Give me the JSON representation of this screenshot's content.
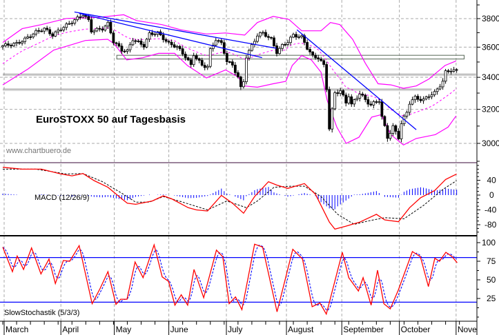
{
  "chart_data": {
    "type": "candlestick",
    "title": "EuroSTOXX 50 auf Tagesbasis",
    "watermark": "www.chartbuero.de",
    "colors": {
      "bands": "#ff00ff",
      "trend": "#0000ff",
      "macd": "#ff0000",
      "signal": "#000000",
      "hist": "#0000ff",
      "k": "#ff0000",
      "d": "#0000ff",
      "levels": "#0000ff",
      "zones": "#808080"
    },
    "x_axis": {
      "unit": "trading day",
      "months": [
        {
          "label": "March",
          "day": 0.5
        },
        {
          "label": "April",
          "day": 21
        },
        {
          "label": "May",
          "day": 40.3
        },
        {
          "label": "June",
          "day": 60
        },
        {
          "label": "July",
          "day": 80.8
        },
        {
          "label": "August",
          "day": 102.5
        },
        {
          "label": "September",
          "day": 122.5
        },
        {
          "label": "October",
          "day": 143.3
        },
        {
          "label": "Nove",
          "day": 163.8
        }
      ]
    },
    "price": {
      "yticks": [
        "3800",
        "3600",
        "3400",
        "3200",
        "3000"
      ],
      "ylim": [
        2900,
        3900
      ],
      "close": [
        [
          0,
          3610
        ],
        [
          5,
          3624
        ],
        [
          8,
          3654
        ],
        [
          12,
          3705
        ],
        [
          15,
          3728
        ],
        [
          18,
          3683
        ],
        [
          21,
          3728
        ],
        [
          24,
          3764
        ],
        [
          28,
          3816
        ],
        [
          29,
          3831
        ],
        [
          31,
          3786
        ],
        [
          32,
          3713
        ],
        [
          36,
          3728
        ],
        [
          38,
          3764
        ],
        [
          40,
          3639
        ],
        [
          43,
          3580
        ],
        [
          45,
          3573
        ],
        [
          47,
          3654
        ],
        [
          51,
          3610
        ],
        [
          53,
          3691
        ],
        [
          56,
          3698
        ],
        [
          60,
          3624
        ],
        [
          63,
          3602
        ],
        [
          66,
          3536
        ],
        [
          68,
          3477
        ],
        [
          69,
          3551
        ],
        [
          72,
          3477
        ],
        [
          74,
          3470
        ],
        [
          75,
          3580
        ],
        [
          77,
          3654
        ],
        [
          79,
          3624
        ],
        [
          81,
          3507
        ],
        [
          83,
          3477
        ],
        [
          85,
          3403
        ],
        [
          86,
          3330
        ],
        [
          87,
          3374
        ],
        [
          88,
          3536
        ],
        [
          90,
          3610
        ],
        [
          92,
          3683
        ],
        [
          94,
          3698
        ],
        [
          97,
          3654
        ],
        [
          99,
          3566
        ],
        [
          101,
          3610
        ],
        [
          103,
          3639
        ],
        [
          105,
          3683
        ],
        [
          108,
          3669
        ],
        [
          110,
          3595
        ],
        [
          112,
          3536
        ],
        [
          114,
          3529
        ],
        [
          116,
          3477
        ],
        [
          117,
          3330
        ],
        [
          118,
          3087
        ],
        [
          120,
          3300
        ],
        [
          122,
          3315
        ],
        [
          124,
          3241
        ],
        [
          125,
          3286
        ],
        [
          126,
          3227
        ],
        [
          129,
          3300
        ],
        [
          131,
          3256
        ],
        [
          133,
          3227
        ],
        [
          136,
          3256
        ],
        [
          137,
          3153
        ],
        [
          139,
          3035
        ],
        [
          141,
          3094
        ],
        [
          143,
          3035
        ],
        [
          144,
          3116
        ],
        [
          146,
          3182
        ],
        [
          147,
          3241
        ],
        [
          149,
          3271
        ],
        [
          152,
          3256
        ],
        [
          154,
          3286
        ],
        [
          156,
          3300
        ],
        [
          159,
          3374
        ],
        [
          160,
          3433
        ],
        [
          162,
          3448
        ],
        [
          164,
          3440
        ]
      ],
      "upper_band": [
        [
          0,
          3632
        ],
        [
          7,
          3728
        ],
        [
          14,
          3757
        ],
        [
          23,
          3801
        ],
        [
          34.5,
          3809
        ],
        [
          43.7,
          3828
        ],
        [
          48.3,
          3786
        ],
        [
          57.5,
          3757
        ],
        [
          64.4,
          3720
        ],
        [
          73.6,
          3691
        ],
        [
          80.5,
          3698
        ],
        [
          87.4,
          3683
        ],
        [
          92,
          3772
        ],
        [
          97.7,
          3816
        ],
        [
          103.4,
          3794
        ],
        [
          108,
          3713
        ],
        [
          115,
          3713
        ],
        [
          118.4,
          3772
        ],
        [
          121.8,
          3757
        ],
        [
          126.4,
          3654
        ],
        [
          131,
          3492
        ],
        [
          135.6,
          3359
        ],
        [
          140.2,
          3352
        ],
        [
          144.8,
          3330
        ],
        [
          149.4,
          3345
        ],
        [
          154,
          3389
        ],
        [
          159.8,
          3477
        ],
        [
          163.8,
          3507
        ]
      ],
      "lower_band": [
        [
          0,
          3352
        ],
        [
          9.2,
          3455
        ],
        [
          18.4,
          3580
        ],
        [
          29.9,
          3646
        ],
        [
          37.9,
          3654
        ],
        [
          40.2,
          3624
        ],
        [
          44.8,
          3514
        ],
        [
          50.6,
          3529
        ],
        [
          56.3,
          3558
        ],
        [
          62.1,
          3558
        ],
        [
          66.7,
          3477
        ],
        [
          73.6,
          3396
        ],
        [
          80.5,
          3448
        ],
        [
          85,
          3403
        ],
        [
          87.4,
          3345
        ],
        [
          92,
          3337
        ],
        [
          97.7,
          3359
        ],
        [
          102.3,
          3374
        ],
        [
          104.6,
          3477
        ],
        [
          108,
          3543
        ],
        [
          111.5,
          3514
        ],
        [
          115,
          3433
        ],
        [
          117.2,
          3256
        ],
        [
          120.7,
          3094
        ],
        [
          124.1,
          3000
        ],
        [
          128.7,
          3035
        ],
        [
          133.3,
          3153
        ],
        [
          136.8,
          3168
        ],
        [
          140.2,
          3050
        ],
        [
          144.8,
          2991
        ],
        [
          149.4,
          3028
        ],
        [
          156.3,
          3050
        ],
        [
          160.9,
          3094
        ],
        [
          163.8,
          3160
        ]
      ],
      "trendlines": [
        [
          [
            25.9,
            3848
          ],
          [
            98.9,
            3592
          ]
        ],
        [
          [
            27.6,
            3838
          ],
          [
            93.7,
            3529
          ]
        ],
        [
          [
            106.3,
            3720
          ],
          [
            149.4,
            3079
          ]
        ]
      ],
      "support_zone": {
        "from_day": 41.2,
        "to_day": 166.7,
        "low": 3520,
        "high": 3545
      },
      "horizontal_lines": [
        {
          "price": 3420,
          "from_day": 0,
          "to_day": 171
        },
        {
          "price": 3325,
          "from_day": 0,
          "to_day": 155
        }
      ]
    },
    "macd": {
      "label": "MACD (12/26/9)",
      "yticks": [
        "40",
        "0",
        "-40",
        "-80"
      ],
      "macd": [
        [
          0,
          75
        ],
        [
          7,
          70
        ],
        [
          14,
          70
        ],
        [
          21,
          57
        ],
        [
          25,
          52
        ],
        [
          29,
          58
        ],
        [
          33,
          39
        ],
        [
          38,
          21
        ],
        [
          43,
          -10
        ],
        [
          45,
          -22
        ],
        [
          48,
          -25
        ],
        [
          54,
          -16
        ],
        [
          58,
          -2
        ],
        [
          61,
          -10
        ],
        [
          67,
          -34
        ],
        [
          70,
          -40
        ],
        [
          74,
          -43
        ],
        [
          79,
          -1
        ],
        [
          83,
          -22
        ],
        [
          87,
          -49
        ],
        [
          91,
          -4
        ],
        [
          96,
          36
        ],
        [
          99,
          27
        ],
        [
          103,
          18
        ],
        [
          109,
          31
        ],
        [
          113,
          2
        ],
        [
          118,
          -73
        ],
        [
          120,
          -92
        ],
        [
          124,
          -84
        ],
        [
          129,
          -73
        ],
        [
          135,
          -52
        ],
        [
          138,
          -67
        ],
        [
          143,
          -72
        ],
        [
          147,
          -34
        ],
        [
          151,
          -7
        ],
        [
          156,
          12
        ],
        [
          160,
          42
        ],
        [
          164,
          57
        ]
      ],
      "signal": [
        [
          0,
          70
        ],
        [
          12,
          70
        ],
        [
          23,
          57
        ],
        [
          29,
          58
        ],
        [
          36,
          36
        ],
        [
          43,
          5
        ],
        [
          48,
          -19
        ],
        [
          53,
          -19
        ],
        [
          58,
          -4
        ],
        [
          65,
          -19
        ],
        [
          74,
          -40
        ],
        [
          81,
          -16
        ],
        [
          88,
          -34
        ],
        [
          92,
          -16
        ],
        [
          98,
          21
        ],
        [
          104,
          24
        ],
        [
          109,
          24
        ],
        [
          115,
          -4
        ],
        [
          121,
          -52
        ],
        [
          127,
          -79
        ],
        [
          132,
          -70
        ],
        [
          138,
          -61
        ],
        [
          145,
          -64
        ],
        [
          152,
          -28
        ],
        [
          159,
          15
        ],
        [
          164,
          39
        ]
      ]
    },
    "stochastic": {
      "label": "SlowStochastik (5/3/3)",
      "yticks": [
        "100",
        "75",
        "50",
        "25"
      ],
      "levels": [
        80,
        20
      ],
      "k": [
        [
          0,
          94
        ],
        [
          3.5,
          61
        ],
        [
          5.2,
          82
        ],
        [
          7.5,
          64
        ],
        [
          10.4,
          93
        ],
        [
          13.8,
          58
        ],
        [
          16.7,
          78
        ],
        [
          19,
          45
        ],
        [
          21.9,
          76
        ],
        [
          24.2,
          75
        ],
        [
          27.6,
          96
        ],
        [
          32.3,
          18
        ],
        [
          35.1,
          38
        ],
        [
          38,
          61
        ],
        [
          40.9,
          17
        ],
        [
          42.6,
          24
        ],
        [
          44.9,
          24
        ],
        [
          47.8,
          74
        ],
        [
          50.7,
          53
        ],
        [
          54.7,
          97
        ],
        [
          57.6,
          54
        ],
        [
          59.9,
          48
        ],
        [
          62.2,
          16
        ],
        [
          64.5,
          30
        ],
        [
          66.8,
          16
        ],
        [
          69.1,
          64
        ],
        [
          72.6,
          26
        ],
        [
          77.2,
          90
        ],
        [
          79.5,
          81
        ],
        [
          81.8,
          18
        ],
        [
          84.1,
          27
        ],
        [
          86.4,
          10
        ],
        [
          91,
          98
        ],
        [
          93.9,
          94
        ],
        [
          99.1,
          7
        ],
        [
          104.8,
          91
        ],
        [
          108.3,
          78
        ],
        [
          111.8,
          14
        ],
        [
          114.6,
          19
        ],
        [
          116.9,
          4
        ],
        [
          122.7,
          87
        ],
        [
          125,
          53
        ],
        [
          128.5,
          35
        ],
        [
          130.2,
          53
        ],
        [
          133.1,
          16
        ],
        [
          135.4,
          63
        ],
        [
          137.7,
          18
        ],
        [
          140,
          11
        ],
        [
          142.9,
          36
        ],
        [
          148,
          88
        ],
        [
          150.9,
          81
        ],
        [
          153.8,
          41
        ],
        [
          156.1,
          79
        ],
        [
          157.8,
          75
        ],
        [
          160.1,
          87
        ],
        [
          162.4,
          81
        ],
        [
          164.2,
          73
        ]
      ]
    }
  }
}
